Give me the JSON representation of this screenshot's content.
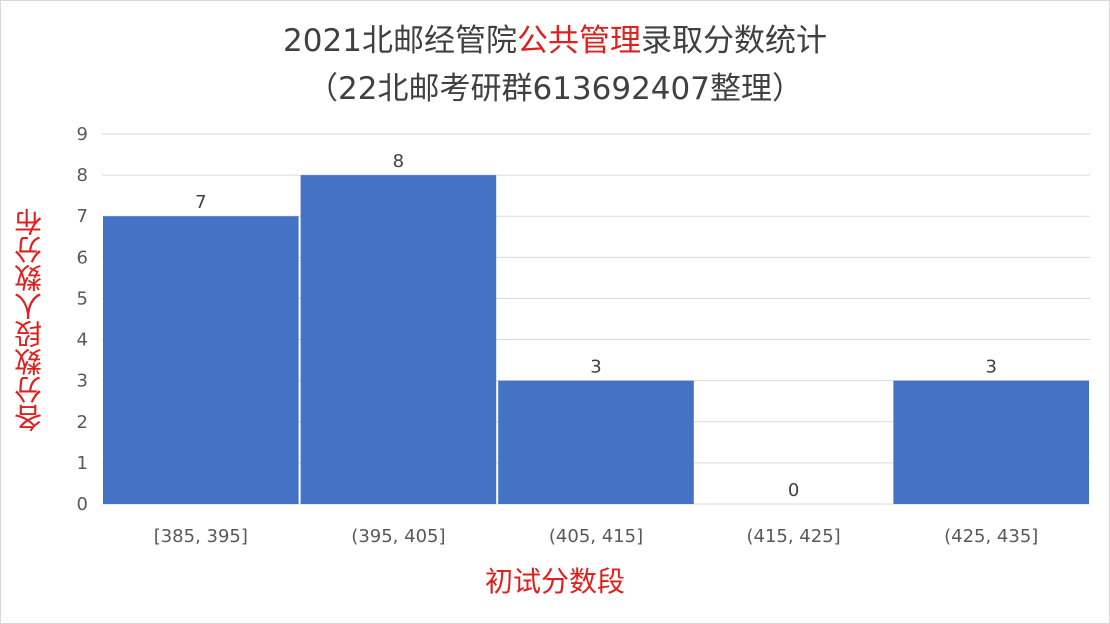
{
  "title_parts": {
    "before": "2021北邮经管院",
    "highlight": "公共管理",
    "after": "录取分数统计"
  },
  "subtitle": "（22北邮考研群613692407整理）",
  "colors": {
    "bar": "#4472c4",
    "highlight": "#e0201e",
    "grid": "#d9d9d9",
    "text": "#404040"
  },
  "chart_data": {
    "type": "bar",
    "title": "2021北邮经管院公共管理录取分数统计",
    "subtitle": "（22北邮考研群613692407整理）",
    "xlabel": "初试分数段",
    "ylabel": "各分数段人数分布",
    "categories": [
      "[385, 395]",
      "(395, 405]",
      "(405, 415]",
      "(415, 425]",
      "(425, 435]"
    ],
    "values": [
      7,
      8,
      3,
      0,
      3
    ],
    "ylim": [
      0,
      9
    ],
    "yticks": [
      "0",
      "1",
      "2",
      "3",
      "4",
      "5",
      "6",
      "7",
      "8",
      "9"
    ],
    "grid": true,
    "legend": "none"
  }
}
